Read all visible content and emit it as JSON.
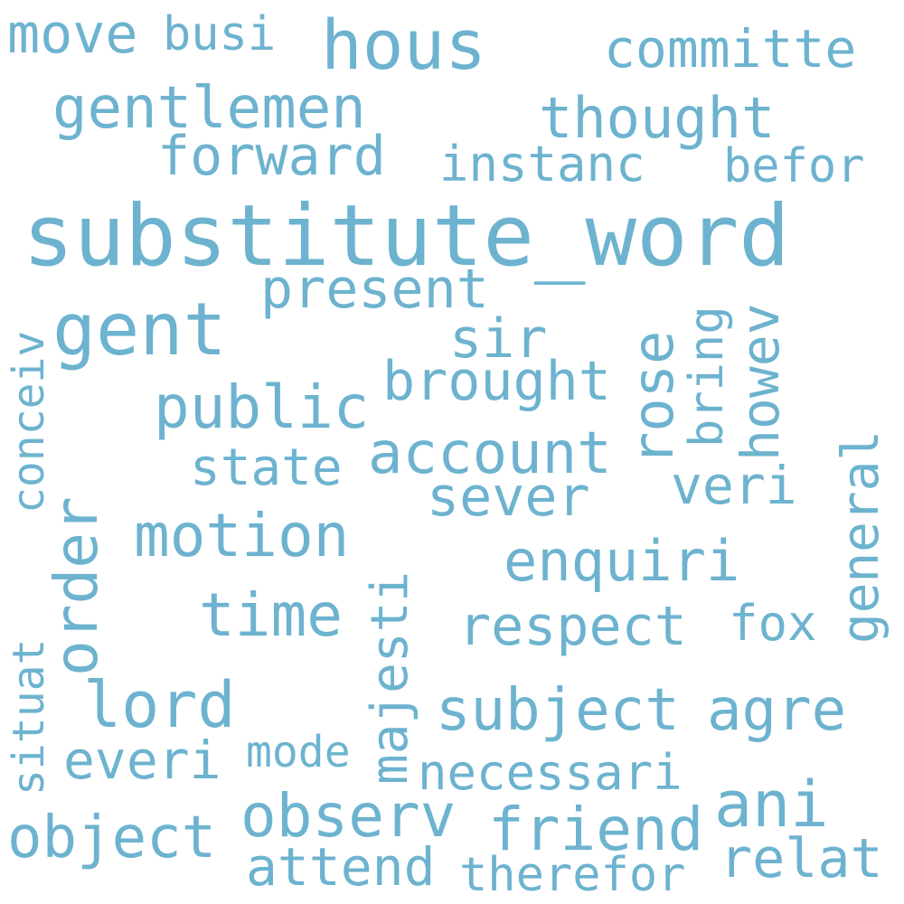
{
  "color": "#6db3cf",
  "words": {
    "substitute_word": "substitute_word",
    "gent": "gent",
    "hous": "hous",
    "committe": "committe",
    "gentlemen": "gentlemen",
    "thought": "thought",
    "forward": "forward",
    "instanc": "instanc",
    "befor": "befor",
    "move": "move",
    "busi": "busi",
    "present": "present",
    "sir": "sir",
    "public": "public",
    "brought": "brought",
    "rose": "rose",
    "bring": "bring",
    "howev": "howev",
    "conceiv": "conceiv",
    "general": "general",
    "state": "state",
    "account": "account",
    "sever": "sever",
    "veri": "veri",
    "order": "order",
    "motion": "motion",
    "majesti": "majesti",
    "enquiri": "enquiri",
    "time": "time",
    "respect": "respect",
    "fox": "fox",
    "situat": "situat",
    "lord": "lord",
    "subject": "subject",
    "agre": "agre",
    "everi": "everi",
    "mode": "mode",
    "necessari": "necessari",
    "ani": "ani",
    "observ": "observ",
    "friend": "friend",
    "object": "object",
    "relat": "relat",
    "attend": "attend",
    "therefor": "therefor"
  }
}
